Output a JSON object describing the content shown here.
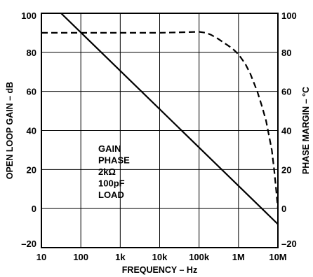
{
  "chart_data": {
    "type": "line",
    "xlabel": "FREQUENCY – Hz",
    "ylabel_left": "OPEN LOOP GAIN – dB",
    "ylabel_right": "PHASE MARGIN – °C",
    "x_scale": "log",
    "xlim": [
      10,
      10000000
    ],
    "ylim_left": [
      -20,
      100
    ],
    "ylim_right": [
      -20,
      100
    ],
    "x_ticks": [
      {
        "value": 10,
        "label": "10"
      },
      {
        "value": 100,
        "label": "100"
      },
      {
        "value": 1000,
        "label": "1k"
      },
      {
        "value": 10000,
        "label": "10k"
      },
      {
        "value": 100000,
        "label": "100k"
      },
      {
        "value": 1000000,
        "label": "1M"
      },
      {
        "value": 10000000,
        "label": "10M"
      }
    ],
    "y_ticks_left": [
      {
        "value": 100,
        "label": "100"
      },
      {
        "value": 80,
        "label": "80"
      },
      {
        "value": 60,
        "label": "60"
      },
      {
        "value": 40,
        "label": "40"
      },
      {
        "value": 20,
        "label": "20"
      },
      {
        "value": 0,
        "label": "0"
      },
      {
        "value": -20,
        "label": "–20"
      }
    ],
    "y_ticks_right": [
      {
        "value": 100,
        "label": "100"
      },
      {
        "value": 80,
        "label": "80"
      },
      {
        "value": 60,
        "label": "60"
      },
      {
        "value": 40,
        "label": "40"
      },
      {
        "value": 20,
        "label": "20"
      },
      {
        "value": 0,
        "label": "0"
      },
      {
        "value": -20,
        "label": "–20"
      }
    ],
    "grid": true,
    "series": [
      {
        "key": "gain",
        "style": "solid",
        "axis": "left",
        "x": [
          31.6,
          10000000
        ],
        "y": [
          100,
          -8
        ]
      },
      {
        "key": "phase",
        "style": "dashed",
        "axis": "right",
        "x": [
          10,
          100,
          1000,
          10000,
          100000,
          150000,
          200000,
          300000,
          500000,
          700000,
          1000000,
          1500000,
          2000000,
          3000000,
          4000000,
          5000000,
          6000000,
          7000000,
          8000000,
          9000000,
          10000000
        ],
        "y": [
          90,
          90,
          90,
          90,
          90.5,
          90,
          89,
          87,
          84,
          82,
          79,
          74,
          69,
          60,
          52,
          45,
          37,
          30,
          20,
          10,
          0
        ]
      }
    ],
    "annotation": [
      "GAIN",
      "PHASE",
      "2kΩ",
      "100pF",
      "LOAD"
    ]
  }
}
